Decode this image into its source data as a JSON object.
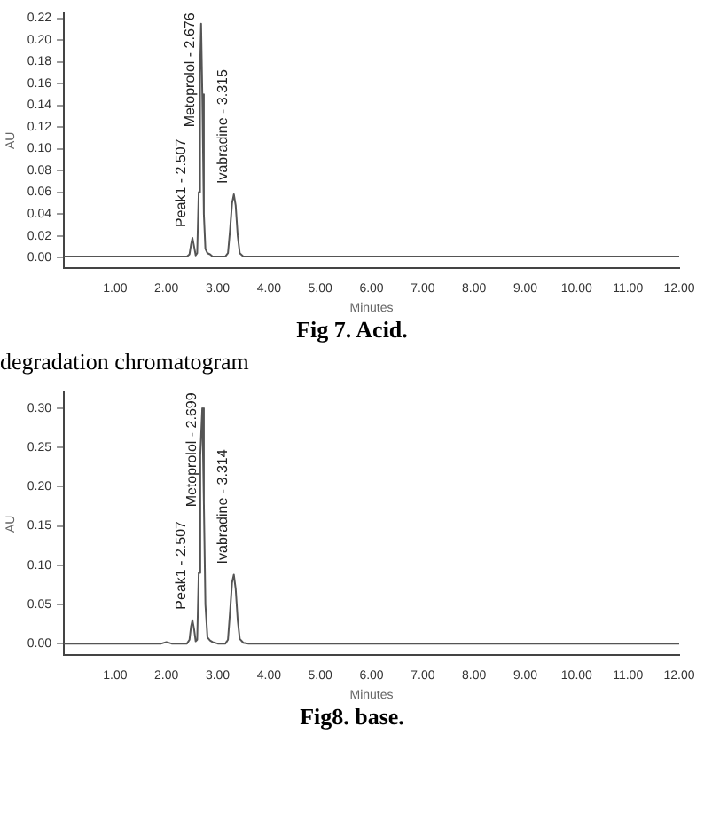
{
  "chart_data": [
    {
      "type": "line",
      "xlabel": "Minutes",
      "ylabel": "AU",
      "grid": false,
      "legend": false,
      "marker": "none",
      "line_style": "solid",
      "series": [
        {
          "color": "#555555",
          "x": [
            0,
            1.0,
            2.0,
            2.4,
            2.45,
            2.48,
            2.507,
            2.54,
            2.57,
            2.6,
            2.63,
            2.655,
            2.676,
            2.7,
            2.73,
            2.76,
            2.8,
            2.85,
            2.9,
            3.0,
            3.15,
            3.2,
            3.24,
            3.28,
            3.315,
            3.35,
            3.39,
            3.43,
            3.5,
            3.6,
            5,
            8,
            12
          ],
          "values": [
            0.001,
            0.001,
            0.001,
            0.001,
            0.003,
            0.012,
            0.018,
            0.01,
            0.002,
            0.004,
            0.06,
            0.17,
            0.215,
            0.15,
            0.04,
            0.008,
            0.004,
            0.003,
            0.001,
            0.001,
            0.001,
            0.004,
            0.025,
            0.05,
            0.058,
            0.048,
            0.02,
            0.004,
            0.001,
            0.001,
            0.001,
            0.001,
            0.001
          ]
        }
      ],
      "xlim": [
        0,
        12
      ],
      "xticks": [
        {
          "value": 1,
          "label": "1.00"
        },
        {
          "value": 2,
          "label": "2.00"
        },
        {
          "value": 3,
          "label": "3.00"
        },
        {
          "value": 4,
          "label": "4.00"
        },
        {
          "value": 5,
          "label": "5.00"
        },
        {
          "value": 6,
          "label": "6.00"
        },
        {
          "value": 7,
          "label": "7.00"
        },
        {
          "value": 8,
          "label": "8.00"
        },
        {
          "value": 9,
          "label": "9.00"
        },
        {
          "value": 10,
          "label": "10.00"
        },
        {
          "value": 11,
          "label": "11.00"
        },
        {
          "value": 12,
          "label": "12.00"
        }
      ],
      "ylim": [
        -0.01,
        0.225
      ],
      "yticks": [
        {
          "value": 0,
          "label": "0.00"
        },
        {
          "value": 0.02,
          "label": "0.02"
        },
        {
          "value": 0.04,
          "label": "0.04"
        },
        {
          "value": 0.06,
          "label": "0.06"
        },
        {
          "value": 0.08,
          "label": "0.08"
        },
        {
          "value": 0.1,
          "label": "0.10"
        },
        {
          "value": 0.12,
          "label": "0.12"
        },
        {
          "value": 0.14,
          "label": "0.14"
        },
        {
          "value": 0.16,
          "label": "0.16"
        },
        {
          "value": 0.18,
          "label": "0.18"
        },
        {
          "value": 0.2,
          "label": "0.20"
        },
        {
          "value": 0.22,
          "label": "0.22"
        }
      ],
      "annotations": [
        {
          "text": "Peak1 - 2.507",
          "x": 2.507,
          "y": 0.018
        },
        {
          "text": "Metoprolol - 2.676",
          "x": 2.676,
          "y": 0.215
        },
        {
          "text": "Ivabradine - 3.315",
          "x": 3.315,
          "y": 0.058
        },
        "Fig 7. Acid."
      ]
    },
    {
      "type": "line",
      "title": "degradation chromatogram",
      "xlabel": "Minutes",
      "ylabel": "AU",
      "grid": false,
      "legend": false,
      "marker": "none",
      "line_style": "solid",
      "series": [
        {
          "color": "#555555",
          "x": [
            0,
            1.0,
            1.9,
            2.0,
            2.1,
            2.4,
            2.45,
            2.48,
            2.507,
            2.54,
            2.57,
            2.6,
            2.63,
            2.66,
            2.699,
            2.73,
            2.76,
            2.8,
            2.85,
            2.9,
            3.0,
            3.15,
            3.2,
            3.24,
            3.28,
            3.314,
            3.35,
            3.39,
            3.43,
            3.5,
            3.6,
            5,
            8,
            12
          ],
          "values": [
            0,
            0,
            0,
            0.002,
            0,
            0,
            0.005,
            0.022,
            0.03,
            0.018,
            0.003,
            0.005,
            0.09,
            0.24,
            0.3,
            0.18,
            0.05,
            0.008,
            0.004,
            0.002,
            0,
            0,
            0.005,
            0.04,
            0.078,
            0.088,
            0.07,
            0.03,
            0.006,
            0.001,
            0,
            0,
            0,
            0
          ]
        }
      ],
      "xlim": [
        0,
        12
      ],
      "xticks": [
        {
          "value": 1,
          "label": "1.00"
        },
        {
          "value": 2,
          "label": "2.00"
        },
        {
          "value": 3,
          "label": "3.00"
        },
        {
          "value": 4,
          "label": "4.00"
        },
        {
          "value": 5,
          "label": "5.00"
        },
        {
          "value": 6,
          "label": "6.00"
        },
        {
          "value": 7,
          "label": "7.00"
        },
        {
          "value": 8,
          "label": "8.00"
        },
        {
          "value": 9,
          "label": "9.00"
        },
        {
          "value": 10,
          "label": "10.00"
        },
        {
          "value": 11,
          "label": "11.00"
        },
        {
          "value": 12,
          "label": "12.00"
        }
      ],
      "ylim": [
        -0.015,
        0.32
      ],
      "yticks": [
        {
          "value": 0,
          "label": "0.00"
        },
        {
          "value": 0.05,
          "label": "0.05"
        },
        {
          "value": 0.1,
          "label": "0.10"
        },
        {
          "value": 0.15,
          "label": "0.15"
        },
        {
          "value": 0.2,
          "label": "0.20"
        },
        {
          "value": 0.25,
          "label": "0.25"
        },
        {
          "value": 0.3,
          "label": "0.30"
        }
      ],
      "annotations": [
        {
          "text": "Peak1 - 2.507",
          "x": 2.507,
          "y": 0.03
        },
        {
          "text": "Metoprolol - 2.699",
          "x": 2.699,
          "y": 0.3
        },
        {
          "text": "Ivabradine - 3.314",
          "x": 3.314,
          "y": 0.088
        },
        "Fig8. base."
      ]
    }
  ]
}
